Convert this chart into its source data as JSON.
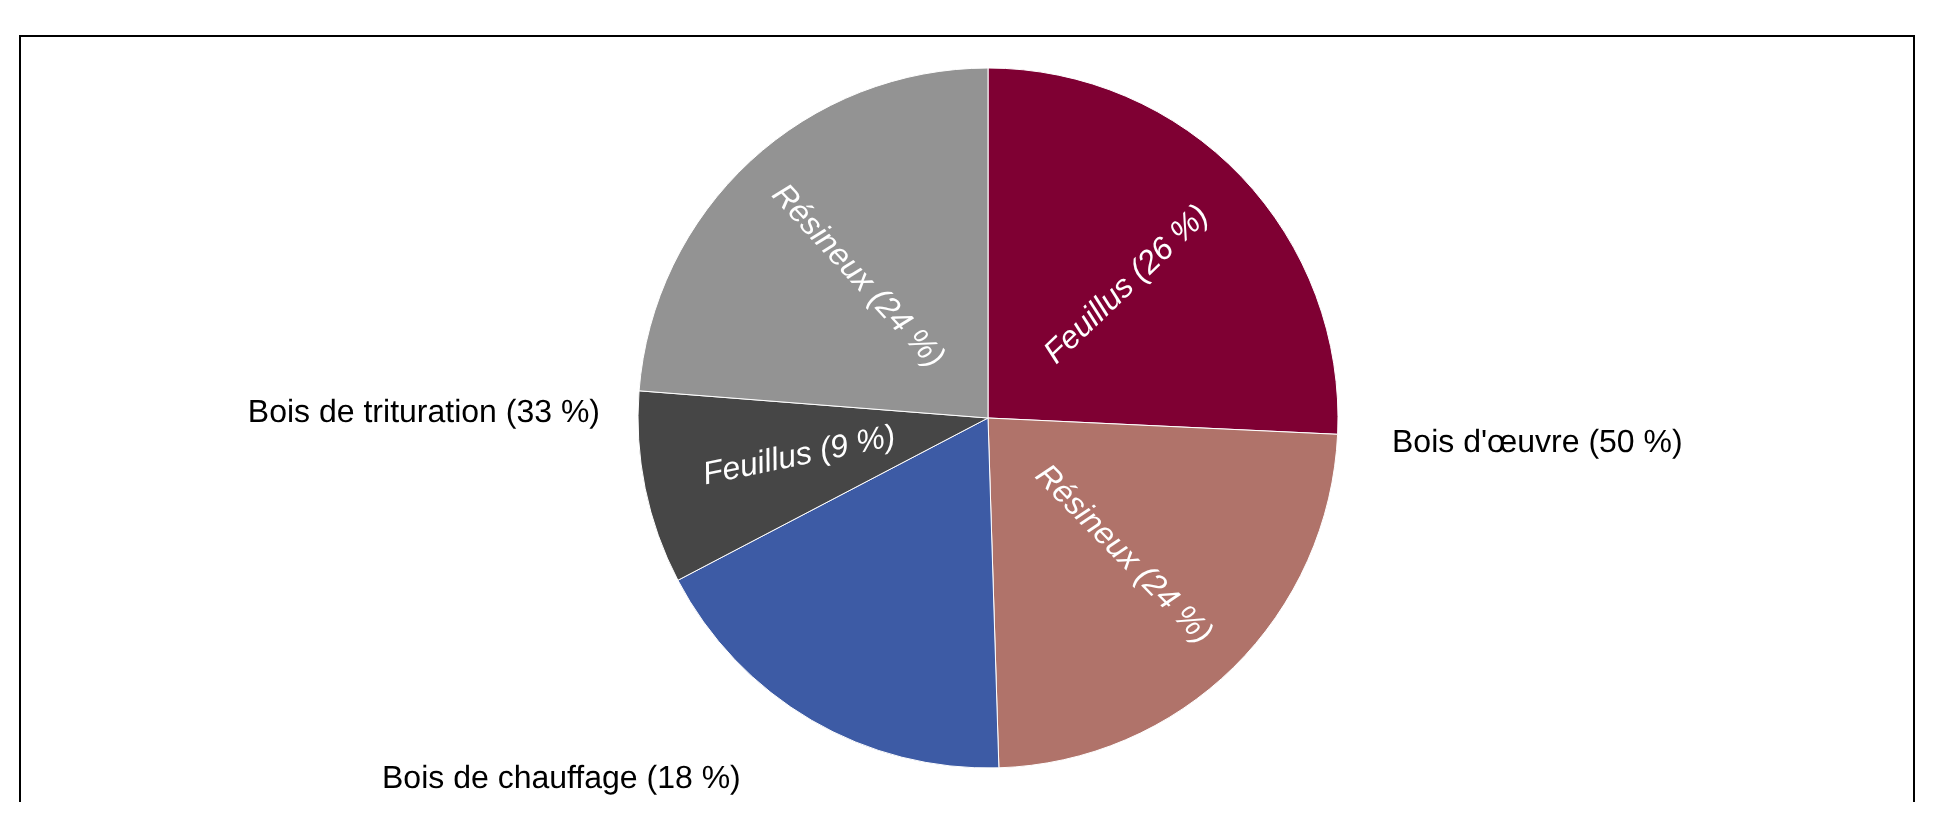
{
  "chart_data": {
    "type": "pie",
    "categories": [
      "Feuillus (26 %)",
      "Résineux (24 %)",
      null,
      "Feuillus (9 %)",
      "Résineux (24 %)"
    ],
    "values": [
      26,
      24,
      18,
      9,
      24
    ],
    "colors": [
      "#7f0033",
      "#b0736a",
      "#3d5ba5",
      "#464646",
      "#939393"
    ],
    "annotations": [
      "Bois d'œuvre (50 %)",
      "Bois de trituration (33 %)",
      "Bois de chauffage (18 %)"
    ]
  }
}
